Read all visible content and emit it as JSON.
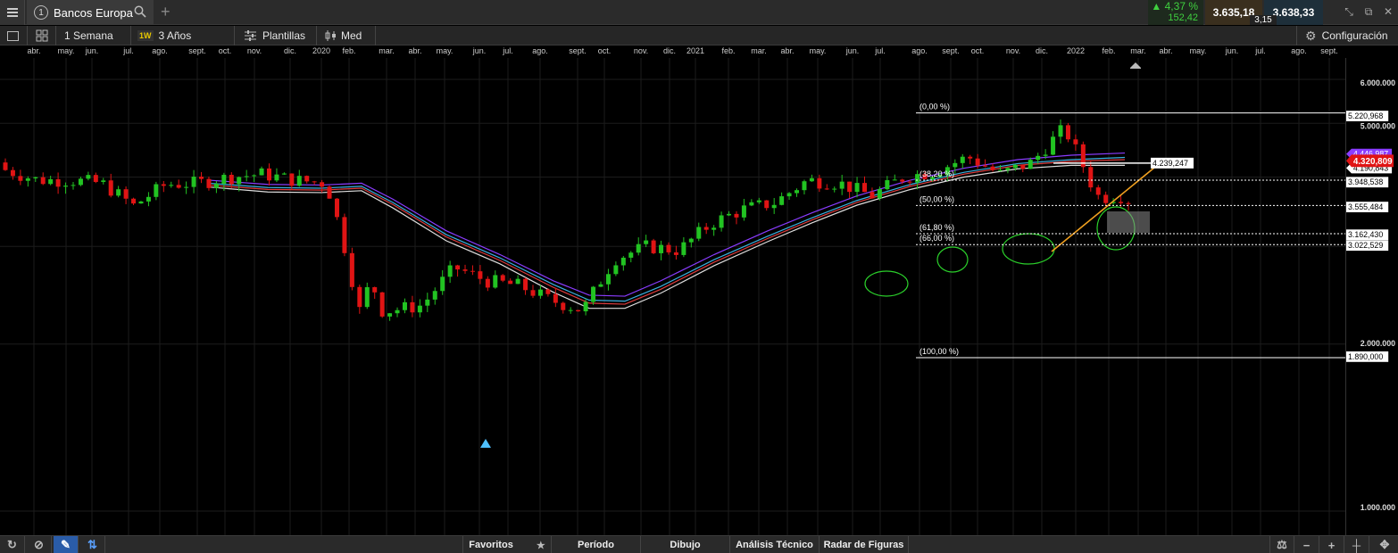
{
  "header": {
    "tab_number": "1",
    "tab_title": "Bancos Europa",
    "change_pct": "▲ 4,37 %",
    "change_abs": "152,42",
    "bid": "3.635,18",
    "ask": "3.638,33",
    "spread": "3,15"
  },
  "toolbar": {
    "period_label": "1 Semana",
    "period_badge": "1W",
    "range_label": "3 Años",
    "templates_label": "Plantillas",
    "median_label": "Med",
    "settings_label": "Configuración"
  },
  "time_axis": [
    "abr.",
    "may.",
    "jun.",
    "jul.",
    "ago.",
    "sept.",
    "oct.",
    "nov.",
    "dic.",
    "2020",
    "feb.",
    "mar.",
    "abr.",
    "may.",
    "jun.",
    "jul.",
    "ago.",
    "sept.",
    "oct.",
    "nov.",
    "dic.",
    "2021",
    "feb.",
    "mar.",
    "abr.",
    "may.",
    "jun.",
    "jul.",
    "ago.",
    "sept.",
    "oct.",
    "nov.",
    "dic.",
    "2022",
    "feb.",
    "mar.",
    "abr.",
    "may.",
    "jun.",
    "jul.",
    "ago.",
    "sept."
  ],
  "price_axis": {
    "ticks": [
      "6.000.000",
      "5.000.000",
      "2.000.000",
      "1.000.000"
    ],
    "tag_values": [
      "5.220,968",
      "4.239,247",
      "3.948,538",
      "3.555,484",
      "3.162,430",
      "3.022,529",
      "1.890,000"
    ],
    "current_price": "4.320,809",
    "ma_values": [
      "4.446,987",
      "4.190,843"
    ]
  },
  "fibonacci": {
    "levels": [
      "(0,00 %)",
      "(38,20 %)",
      "(50,00 %)",
      "(61,80 %)",
      "(66,00 %)",
      "(100,00 %)"
    ]
  },
  "colors": {
    "up": "#22c322",
    "down": "#e01414",
    "ma1": "#8a3cff",
    "ma2": "#3ab0e0",
    "ma3": "#e03c3c",
    "ma4": "#dddddd",
    "trendline": "#f0a020"
  },
  "bottom": {
    "favorites": "Favoritos",
    "period": "Período",
    "drawing": "Dibujo",
    "technical": "Análisis Técnico",
    "patterns": "Radar de Figuras"
  },
  "chart_data": {
    "type": "candlestick",
    "instrument": "Bancos Europa",
    "interval": "1W",
    "range": "3 Años",
    "ylim": [
      1000,
      6000
    ],
    "y_scale": "log",
    "x_range": [
      "2019-04",
      "2022-09"
    ],
    "candles_approx": [
      {
        "date": "2019-04",
        "o": 4250,
        "h": 4390,
        "l": 4010,
        "c": 4120
      },
      {
        "date": "2019-05",
        "o": 4120,
        "h": 4200,
        "l": 3880,
        "c": 3950
      },
      {
        "date": "2019-06",
        "o": 3900,
        "h": 4000,
        "l": 3820,
        "c": 3950
      },
      {
        "date": "2019-07",
        "o": 3950,
        "h": 4050,
        "l": 3820,
        "c": 3900
      },
      {
        "date": "2019-08",
        "o": 3700,
        "h": 3800,
        "l": 3420,
        "c": 3550
      },
      {
        "date": "2019-09",
        "o": 3600,
        "h": 3920,
        "l": 3560,
        "c": 3880
      },
      {
        "date": "2019-10",
        "o": 3800,
        "h": 3950,
        "l": 3650,
        "c": 3900
      },
      {
        "date": "2019-11",
        "o": 3950,
        "h": 4050,
        "l": 3850,
        "c": 4000
      },
      {
        "date": "2019-12",
        "o": 3950,
        "h": 4080,
        "l": 3900,
        "c": 4050
      },
      {
        "date": "2020-01",
        "o": 4050,
        "h": 4100,
        "l": 3900,
        "c": 3950
      },
      {
        "date": "2020-02",
        "o": 4100,
        "h": 4250,
        "l": 3800,
        "c": 3900
      },
      {
        "date": "2020-03",
        "o": 3800,
        "h": 3800,
        "l": 2100,
        "c": 2300
      },
      {
        "date": "2020-04",
        "o": 2300,
        "h": 2500,
        "l": 2150,
        "c": 2300
      },
      {
        "date": "2020-05",
        "o": 2250,
        "h": 2400,
        "l": 2050,
        "c": 2350
      },
      {
        "date": "2020-06",
        "o": 2400,
        "h": 2850,
        "l": 2350,
        "c": 2750
      },
      {
        "date": "2020-07",
        "o": 2700,
        "h": 2800,
        "l": 2500,
        "c": 2600
      },
      {
        "date": "2020-08",
        "o": 2600,
        "h": 2700,
        "l": 2500,
        "c": 2550
      },
      {
        "date": "2020-09",
        "o": 2550,
        "h": 2600,
        "l": 2300,
        "c": 2400
      },
      {
        "date": "2020-10",
        "o": 2400,
        "h": 2450,
        "l": 2200,
        "c": 2300
      },
      {
        "date": "2020-11",
        "o": 2300,
        "h": 2950,
        "l": 2250,
        "c": 2850
      },
      {
        "date": "2020-12",
        "o": 2900,
        "h": 3050,
        "l": 2850,
        "c": 3000
      },
      {
        "date": "2021-01",
        "o": 3000,
        "h": 3100,
        "l": 2850,
        "c": 2950
      },
      {
        "date": "2021-02",
        "o": 2950,
        "h": 3350,
        "l": 2900,
        "c": 3300
      },
      {
        "date": "2021-03",
        "o": 3350,
        "h": 3550,
        "l": 3300,
        "c": 3500
      },
      {
        "date": "2021-04",
        "o": 3500,
        "h": 3650,
        "l": 3450,
        "c": 3600
      },
      {
        "date": "2021-05",
        "o": 3600,
        "h": 4000,
        "l": 3550,
        "c": 3950
      },
      {
        "date": "2021-06",
        "o": 4000,
        "h": 4150,
        "l": 3850,
        "c": 3900
      },
      {
        "date": "2021-07",
        "o": 3850,
        "h": 3950,
        "l": 3600,
        "c": 3700
      },
      {
        "date": "2021-08",
        "o": 3750,
        "h": 4050,
        "l": 3700,
        "c": 4000
      },
      {
        "date": "2021-09",
        "o": 4000,
        "h": 4150,
        "l": 3900,
        "c": 4100
      },
      {
        "date": "2021-10",
        "o": 4100,
        "h": 4450,
        "l": 4050,
        "c": 4350
      },
      {
        "date": "2021-11",
        "o": 4400,
        "h": 4500,
        "l": 3950,
        "c": 4050
      },
      {
        "date": "2021-12",
        "o": 4050,
        "h": 4300,
        "l": 3950,
        "c": 4250
      },
      {
        "date": "2022-01",
        "o": 4300,
        "h": 5000,
        "l": 4250,
        "c": 4900
      },
      {
        "date": "2022-02",
        "o": 4900,
        "h": 5220,
        "l": 3600,
        "c": 3700
      },
      {
        "date": "2022-03",
        "o": 3600,
        "h": 3760,
        "l": 3300,
        "c": 3635
      }
    ],
    "fibonacci_levels": [
      {
        "label": "(0,00 %)",
        "value": 5220.968
      },
      {
        "label": "(38,20 %)",
        "value": 3948.538
      },
      {
        "label": "(50,00 %)",
        "value": 3555.484
      },
      {
        "label": "(61,80 %)",
        "value": 3162.43
      },
      {
        "label": "(66,00 %)",
        "value": 3022.529
      },
      {
        "label": "(100,00 %)",
        "value": 1890.0
      }
    ],
    "horizontal_line": 4239.247,
    "current_price": 4320.809,
    "moving_averages": [
      "purple",
      "blue",
      "red",
      "white"
    ],
    "grid": true,
    "legend": "none"
  }
}
